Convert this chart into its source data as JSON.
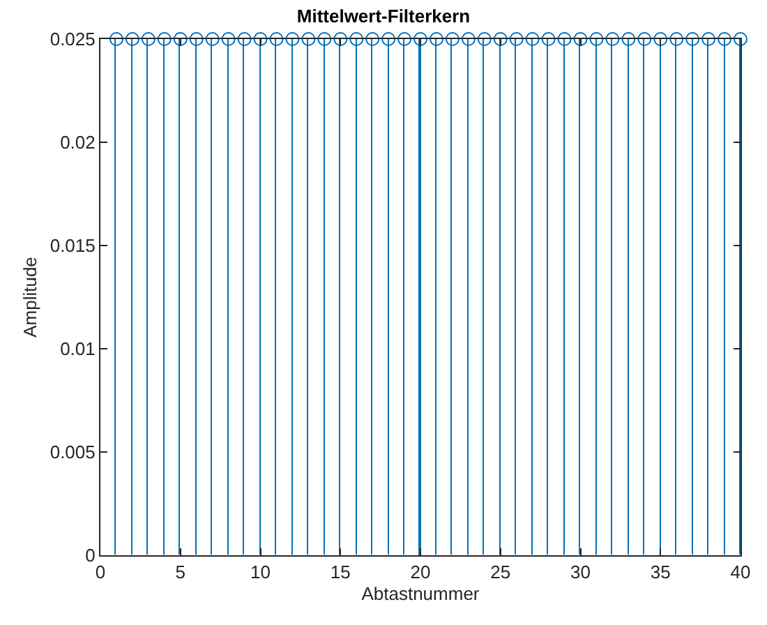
{
  "chart_data": {
    "type": "lollipop",
    "title": "Mittelwert-Filterkern",
    "xlabel": "Abtastnummer",
    "ylabel": "Amplitude",
    "x": [
      1,
      2,
      3,
      4,
      5,
      6,
      7,
      8,
      9,
      10,
      11,
      12,
      13,
      14,
      15,
      16,
      17,
      18,
      19,
      20,
      21,
      22,
      23,
      24,
      25,
      26,
      27,
      28,
      29,
      30,
      31,
      32,
      33,
      34,
      35,
      36,
      37,
      38,
      39,
      40
    ],
    "values": [
      0.025,
      0.025,
      0.025,
      0.025,
      0.025,
      0.025,
      0.025,
      0.025,
      0.025,
      0.025,
      0.025,
      0.025,
      0.025,
      0.025,
      0.025,
      0.025,
      0.025,
      0.025,
      0.025,
      0.025,
      0.025,
      0.025,
      0.025,
      0.025,
      0.025,
      0.025,
      0.025,
      0.025,
      0.025,
      0.025,
      0.025,
      0.025,
      0.025,
      0.025,
      0.025,
      0.025,
      0.025,
      0.025,
      0.025,
      0.025
    ],
    "color": "#0072bd",
    "marker": "circle",
    "grid": false,
    "xlim": [
      0,
      40
    ],
    "xticks": [
      0,
      5,
      10,
      15,
      20,
      25,
      30,
      35,
      40
    ],
    "ylim": [
      0,
      0.025
    ],
    "yticks": [
      0,
      0.005,
      0.01,
      0.015,
      0.02,
      0.025
    ]
  }
}
